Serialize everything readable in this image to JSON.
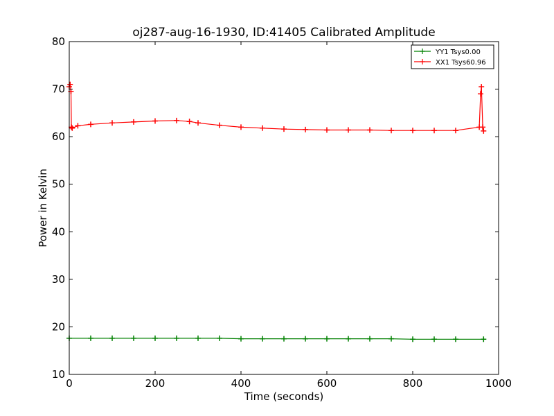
{
  "chart_data": {
    "type": "line",
    "title": "oj287-aug-16-1930, ID:41405 Calibrated Amplitude",
    "xlabel": "Time (seconds)",
    "ylabel": "Power in Kelvin",
    "xlim": [
      0,
      1000
    ],
    "ylim": [
      10,
      80
    ],
    "xticks": [
      0,
      200,
      400,
      600,
      800,
      1000
    ],
    "yticks": [
      10,
      20,
      30,
      40,
      50,
      60,
      70,
      80
    ],
    "grid": false,
    "legend_position": "top-right",
    "series": [
      {
        "name": "YY1 Tsys0.00",
        "color": "#008000",
        "marker": "+",
        "x": [
          0,
          50,
          100,
          150,
          200,
          250,
          300,
          350,
          400,
          450,
          500,
          550,
          600,
          650,
          700,
          750,
          800,
          850,
          900,
          965
        ],
        "y": [
          17.6,
          17.6,
          17.6,
          17.6,
          17.6,
          17.6,
          17.6,
          17.6,
          17.5,
          17.5,
          17.5,
          17.5,
          17.5,
          17.5,
          17.5,
          17.5,
          17.4,
          17.4,
          17.4,
          17.4
        ]
      },
      {
        "name": "XX1 Tsys60.96",
        "color": "#ff0000",
        "marker": "+",
        "x": [
          0,
          2,
          4,
          5,
          7,
          20,
          50,
          100,
          150,
          200,
          250,
          280,
          300,
          350,
          400,
          450,
          500,
          550,
          600,
          650,
          700,
          750,
          800,
          850,
          900,
          955,
          958,
          960,
          963,
          965
        ],
        "y": [
          70.5,
          71.0,
          69.5,
          62.0,
          61.8,
          62.3,
          62.6,
          62.9,
          63.1,
          63.3,
          63.4,
          63.2,
          62.9,
          62.4,
          62.0,
          61.8,
          61.6,
          61.5,
          61.4,
          61.4,
          61.4,
          61.3,
          61.3,
          61.3,
          61.3,
          62.0,
          69.0,
          70.5,
          62.0,
          61.2
        ]
      }
    ]
  }
}
